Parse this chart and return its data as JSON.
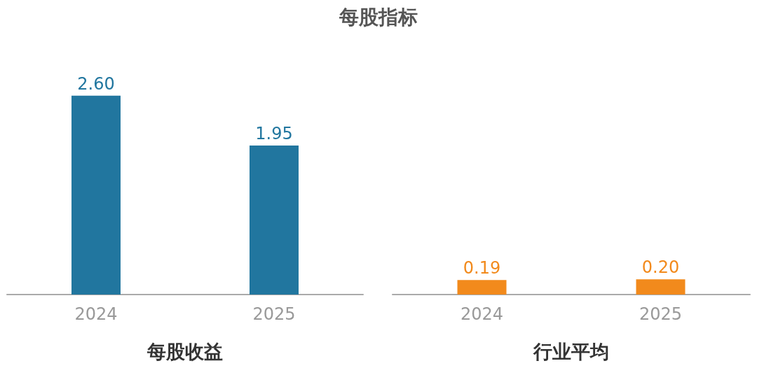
{
  "chart_data": [
    {
      "type": "bar",
      "title": "每股指标",
      "xlabel": "每股收益",
      "categories": [
        "2024",
        "2025"
      ],
      "values": [
        2.6,
        1.95
      ],
      "color": "#21769f",
      "value_labels": [
        "2.60",
        "1.95"
      ]
    },
    {
      "type": "bar",
      "xlabel": "行业平均",
      "categories": [
        "2024",
        "2025"
      ],
      "values": [
        0.19,
        0.2
      ],
      "color": "#f28a1c",
      "value_labels": [
        "0.19",
        "0.20"
      ]
    }
  ]
}
